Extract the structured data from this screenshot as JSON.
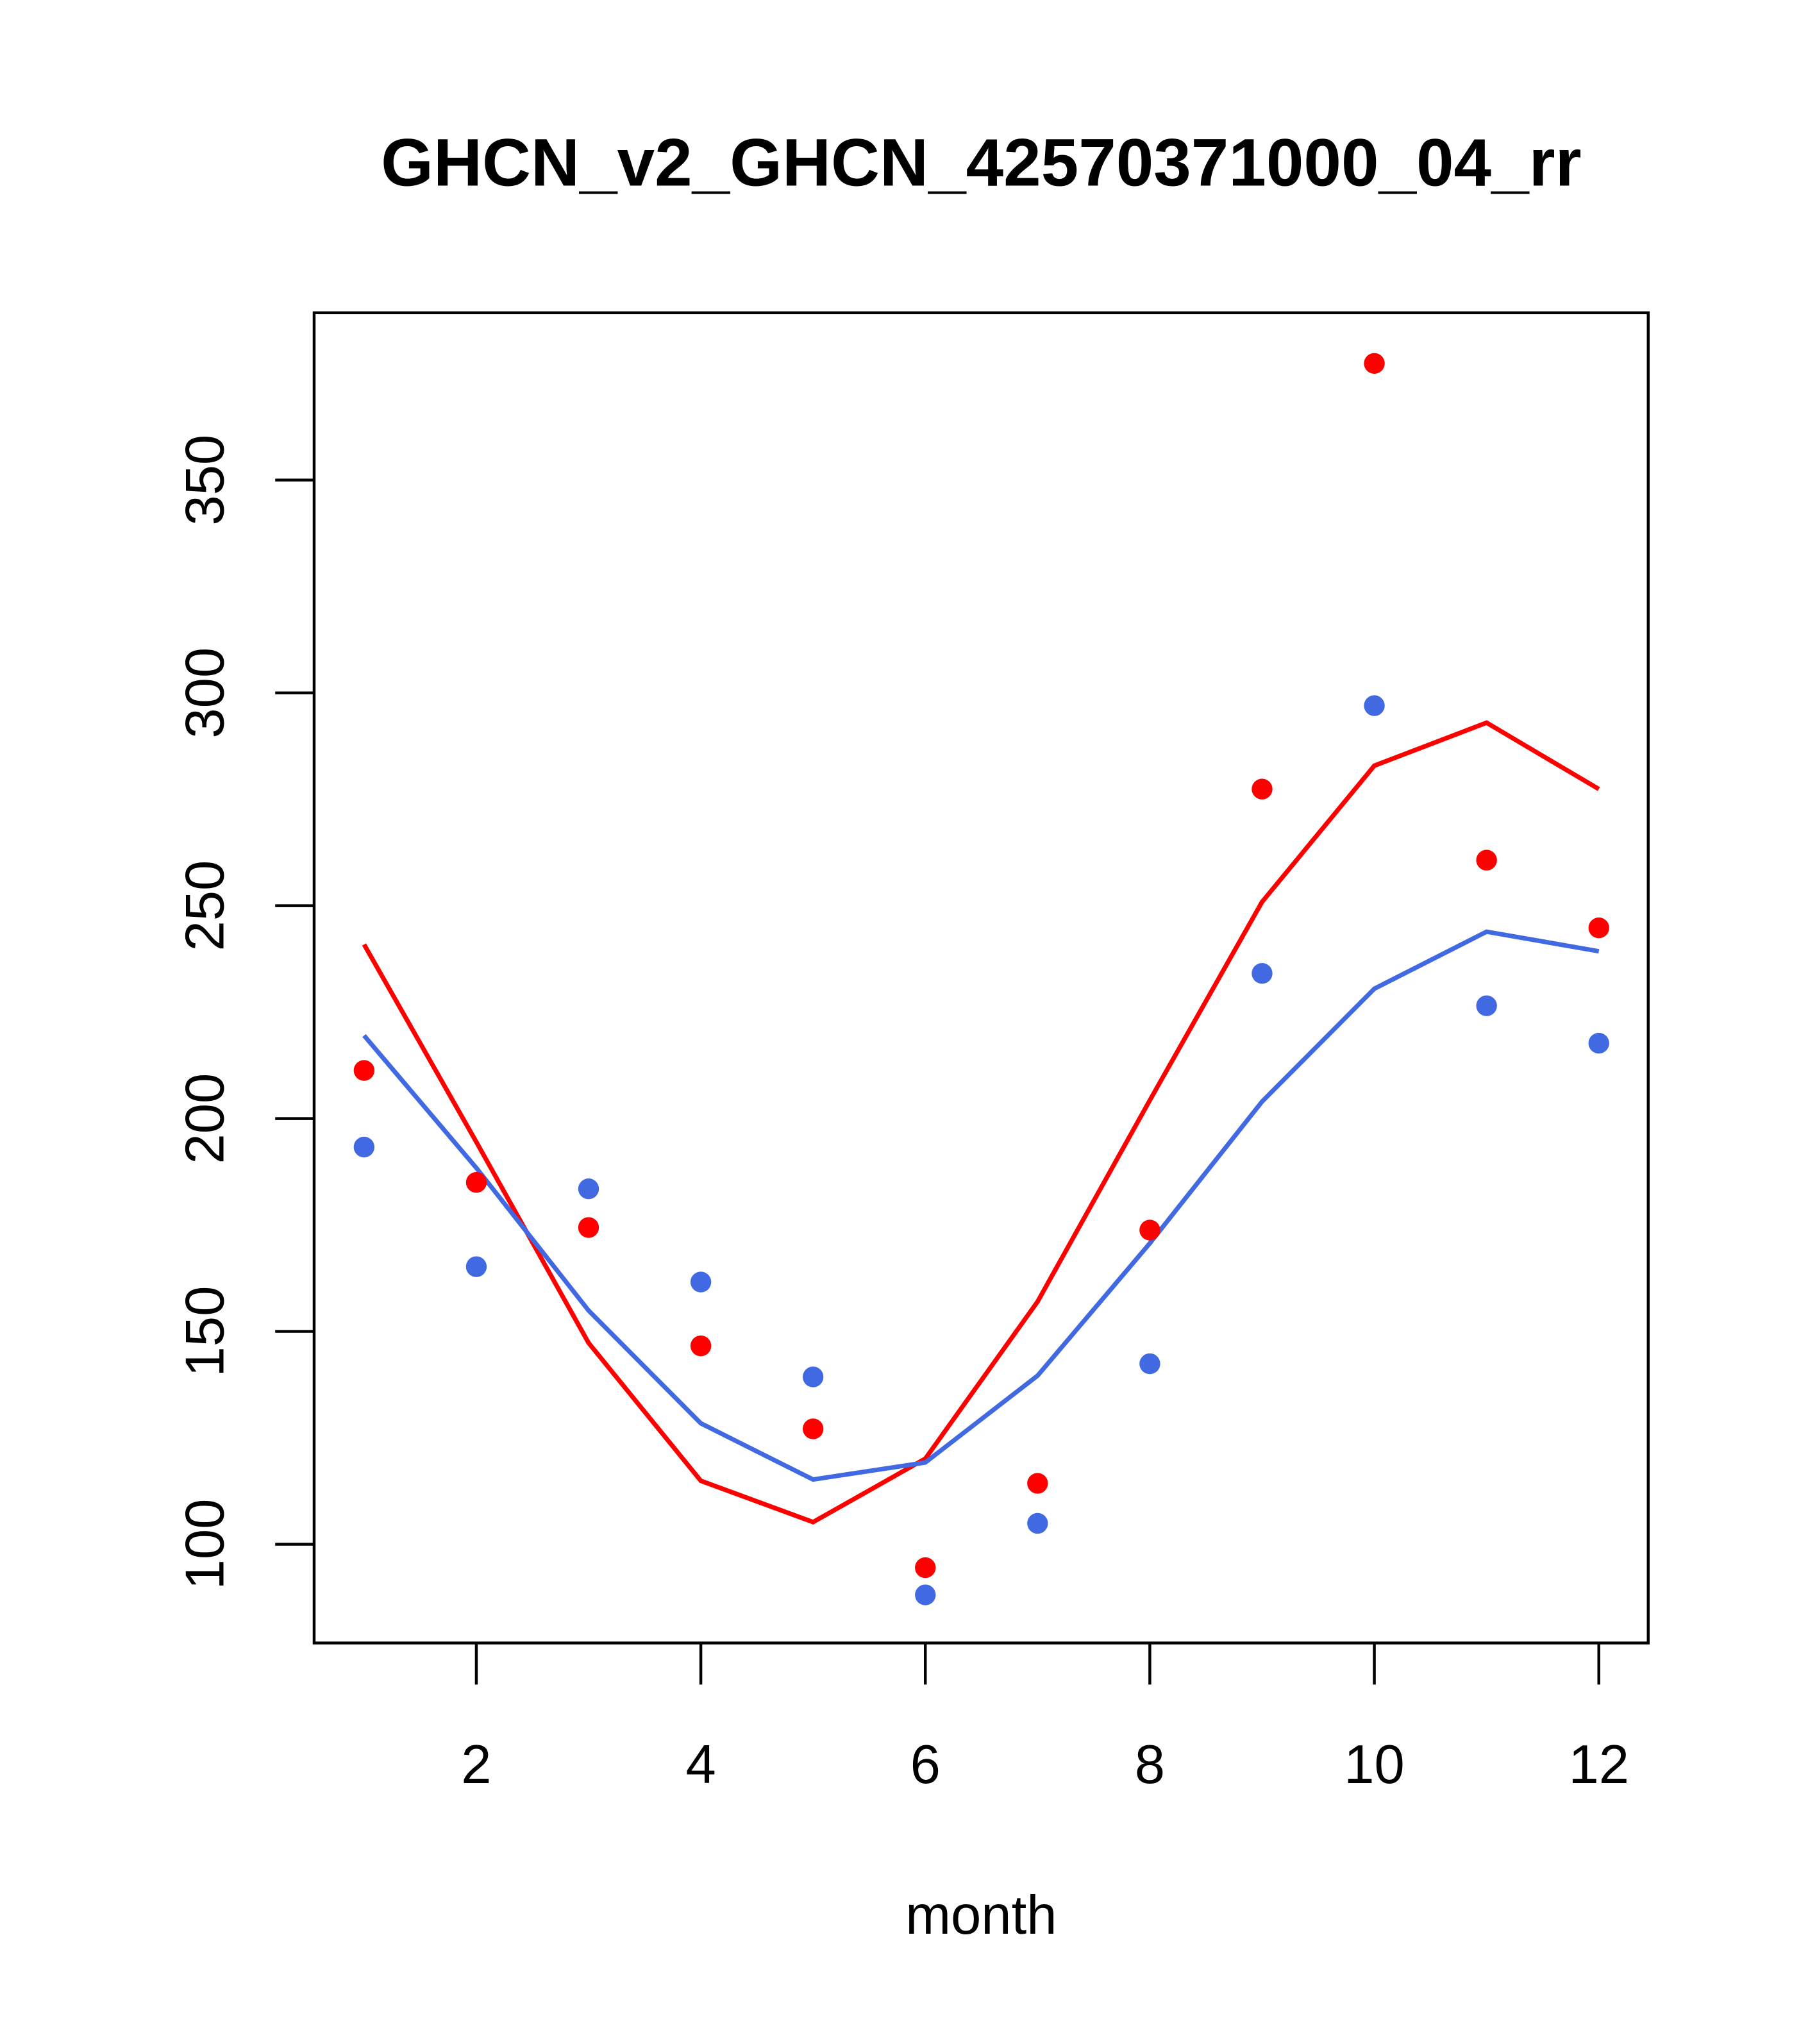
{
  "chart_data": {
    "type": "line",
    "title": "GHCN_v2_GHCN_42570371000_04_rr",
    "xlabel": "month",
    "ylabel": "",
    "xlim": [
      0.555,
      12.44
    ],
    "ylim": [
      76.8,
      389.3
    ],
    "x_ticks": [
      2,
      4,
      6,
      8,
      10,
      12
    ],
    "y_ticks": [
      100,
      150,
      200,
      250,
      300,
      350
    ],
    "grid": false,
    "legend": "none",
    "x": [
      1,
      2,
      3,
      4,
      5,
      6,
      7,
      8,
      9,
      10,
      11,
      12
    ],
    "series": [
      {
        "name": "red points",
        "kind": "points",
        "color": "#ff0000",
        "values": [
          211.3,
          185.0,
          174.4,
          146.6,
          127.1,
          94.5,
          114.3,
          173.8,
          277.4,
          377.4,
          260.7,
          244.8
        ]
      },
      {
        "name": "blue points",
        "kind": "points",
        "color": "#4169e1",
        "values": [
          193.3,
          165.2,
          183.5,
          161.6,
          139.3,
          88.1,
          104.9,
          142.4,
          234.1,
          297.0,
          226.5,
          217.7
        ]
      },
      {
        "name": "red line",
        "kind": "line",
        "color": "#ff0000",
        "values": [
          240.9,
          194.5,
          147.3,
          114.9,
          105.2,
          120.1,
          157.0,
          204.3,
          250.9,
          282.9,
          293.0,
          277.4
        ]
      },
      {
        "name": "blue line",
        "kind": "line",
        "color": "#4169e1",
        "values": [
          219.5,
          188.4,
          154.9,
          128.4,
          115.2,
          119.2,
          139.6,
          170.7,
          204.0,
          230.5,
          243.9,
          239.3
        ]
      }
    ]
  }
}
